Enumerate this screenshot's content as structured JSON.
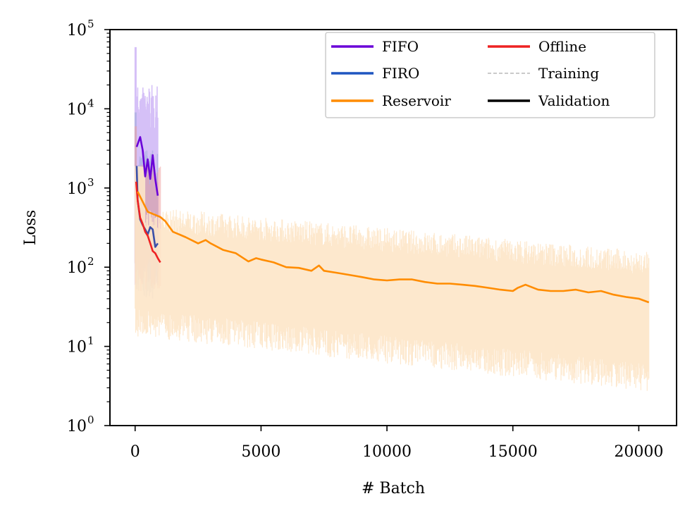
{
  "chart_data": {
    "type": "line",
    "xlabel": "# Batch",
    "ylabel": "Loss",
    "y_scale": "log",
    "xlim": [
      -1000,
      21500
    ],
    "ylim": [
      1,
      100000
    ],
    "x_ticks": [
      0,
      5000,
      10000,
      15000,
      20000
    ],
    "x_tick_labels": [
      "0",
      "5000",
      "10000",
      "15000",
      "20000"
    ],
    "y_ticks": [
      1,
      10,
      100,
      1000,
      10000,
      100000
    ],
    "y_tick_labels": [
      {
        "base": "10",
        "exp": "0"
      },
      {
        "base": "10",
        "exp": "1"
      },
      {
        "base": "10",
        "exp": "2"
      },
      {
        "base": "10",
        "exp": "3"
      },
      {
        "base": "10",
        "exp": "4"
      },
      {
        "base": "10",
        "exp": "5"
      }
    ],
    "grid": false,
    "legend_position": "top-right",
    "legend_columns": 2,
    "legend": [
      {
        "label": "FIFO",
        "color": "#6a00d8",
        "style": "solid"
      },
      {
        "label": "Offline",
        "color": "#ee2222",
        "style": "solid"
      },
      {
        "label": "FIRO",
        "color": "#1f55c0",
        "style": "solid"
      },
      {
        "label": "Training",
        "color": "#aaaaaa",
        "style": "dashed"
      },
      {
        "label": "Reservoir",
        "color": "#ff8c00",
        "style": "solid"
      },
      {
        "label": "Validation",
        "color": "#000000",
        "style": "solid"
      }
    ],
    "series": [
      {
        "name": "FIFO",
        "kind": "validation",
        "color": "#6a00d8",
        "training_fill": "#b38cf0",
        "x": [
          60,
          200,
          300,
          400,
          500,
          600,
          700,
          800,
          900
        ],
        "y": [
          3300,
          4400,
          3000,
          1400,
          2300,
          1300,
          2600,
          1300,
          800
        ]
      },
      {
        "name": "FIRO",
        "kind": "validation",
        "color": "#3a4fa8",
        "training_fill": "#9aa8d8",
        "x": [
          60,
          100,
          200,
          300,
          400,
          500,
          600,
          700,
          800,
          900
        ],
        "y": [
          1900,
          700,
          400,
          340,
          300,
          260,
          320,
          300,
          180,
          200
        ]
      },
      {
        "name": "Offline",
        "kind": "validation",
        "color": "#ee2222",
        "training_fill": "#f0a0a0",
        "x": [
          40,
          100,
          200,
          300,
          400,
          500,
          600,
          700,
          800,
          900,
          1000
        ],
        "y": [
          1200,
          700,
          420,
          350,
          280,
          250,
          200,
          160,
          150,
          130,
          115
        ]
      },
      {
        "name": "Reservoir",
        "kind": "validation",
        "color": "#ff8c00",
        "training_fill": "#fde6c8",
        "x": [
          100,
          500,
          1000,
          1200,
          1500,
          2000,
          2500,
          2800,
          3000,
          3500,
          4000,
          4500,
          4800,
          5000,
          5500,
          6000,
          6500,
          7000,
          7300,
          7500,
          8000,
          8500,
          9000,
          9500,
          10000,
          10500,
          11000,
          11500,
          12000,
          12500,
          13000,
          13500,
          14000,
          14500,
          15000,
          15200,
          15500,
          16000,
          16500,
          17000,
          17500,
          18000,
          18500,
          19000,
          19500,
          20000,
          20400
        ],
        "y": [
          900,
          500,
          430,
          380,
          280,
          240,
          200,
          220,
          200,
          165,
          150,
          118,
          130,
          125,
          115,
          100,
          98,
          90,
          105,
          90,
          85,
          80,
          75,
          70,
          68,
          70,
          70,
          65,
          62,
          62,
          60,
          58,
          55,
          52,
          50,
          55,
          60,
          52,
          50,
          50,
          52,
          48,
          50,
          45,
          42,
          40,
          36
        ]
      }
    ],
    "training_bands": [
      {
        "name": "FIFO",
        "x_start": 0,
        "x_end": 900,
        "low": 60,
        "high": 20000
      },
      {
        "name": "FIRO",
        "x_start": 0,
        "x_end": 900,
        "low": 40,
        "high": 3000
      },
      {
        "name": "Offline",
        "x_start": 0,
        "x_end": 1000,
        "low": 50,
        "high": 2000
      },
      {
        "name": "Reservoir",
        "x_start": 0,
        "x_end": 20400,
        "low_start": 30,
        "low_end": 6,
        "high_start": 300,
        "high_end": 80
      }
    ]
  }
}
